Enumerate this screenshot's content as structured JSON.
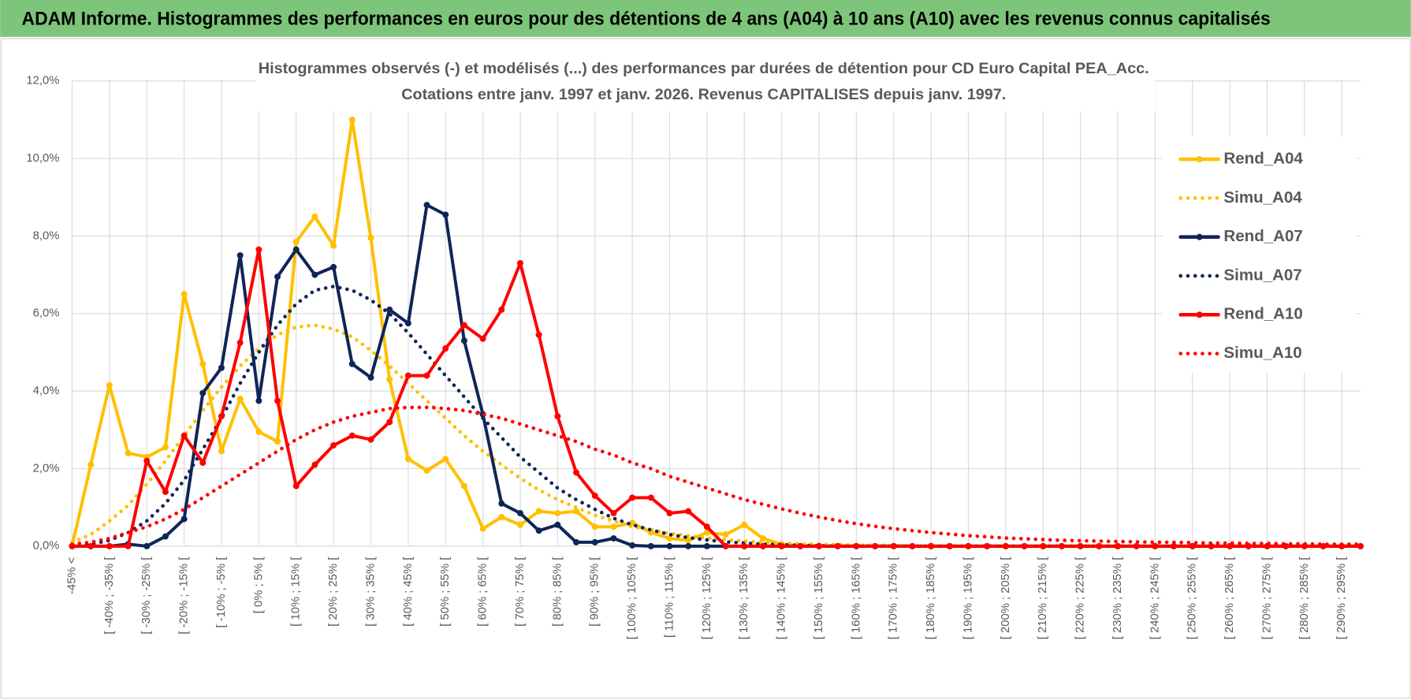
{
  "header": {
    "title": "ADAM Informe. Histogrammes des performances en euros pour des détentions de 4 ans (A04) à 10 ans (A10) avec les revenus connus capitalisés"
  },
  "chart_data": {
    "type": "line",
    "title": "Histogrammes observés (-) et modélisés (...) des performances par durées de détention pour CD Euro Capital PEA_Acc.",
    "subtitle": "Cotations entre janv. 1997 et janv. 2026. Revenus CAPITALISES depuis janv. 1997.",
    "categories": [
      "-45% <",
      null,
      "[ -40% ; -35% [",
      null,
      "[ -30% ; -25% [",
      null,
      "[ -20% ; -15% [",
      null,
      "[ -10% ; -5% [",
      null,
      "[ 0% ; 5% [",
      null,
      "[ 10% ; 15% [",
      null,
      "[ 20% ; 25% [",
      null,
      "[ 30% ; 35% [",
      null,
      "[ 40% ; 45% [",
      null,
      "[ 50% ; 55% [",
      null,
      "[ 60% ; 65% [",
      null,
      "[ 70% ; 75% [",
      null,
      "[ 80% ; 85% [",
      null,
      "[ 90% ; 95% [",
      null,
      "[ 100% ; 105% [",
      null,
      "[ 110% ; 115% [",
      null,
      "[ 120% ; 125% [",
      null,
      "[ 130% ; 135% [",
      null,
      "[ 140% ; 145% [",
      null,
      "[ 150% ; 155% [",
      null,
      "[ 160% ; 165% [",
      null,
      "[ 170% ; 175% [",
      null,
      "[ 180% ; 185% [",
      null,
      "[ 190% ; 195% [",
      null,
      "[ 200% ; 205% [",
      null,
      "[ 210% ; 215% [",
      null,
      "[ 220% ; 225% [",
      null,
      "[ 230% ; 235% [",
      null,
      "[ 240% ; 245% [",
      null,
      "[ 250% ; 255% [",
      null,
      "[ 260% ; 265% [",
      null,
      "[ 270% ; 275% [",
      null,
      "[ 280% ; 285% [",
      null,
      "[ 290% ; 295% [",
      null
    ],
    "series": [
      {
        "name": "Rend_A04",
        "color": "#ffc000",
        "style": "solid",
        "markers": true,
        "values": [
          0,
          2.1,
          4.15,
          2.4,
          2.3,
          2.55,
          6.5,
          4.7,
          2.45,
          3.8,
          2.95,
          2.7,
          7.85,
          8.5,
          7.75,
          11.0,
          7.95,
          4.3,
          2.25,
          1.95,
          2.25,
          1.55,
          0.45,
          0.75,
          0.55,
          0.9,
          0.85,
          0.9,
          0.5,
          0.5,
          0.6,
          0.35,
          0.2,
          0.15,
          0.35,
          0.3,
          0.55,
          0.2,
          0.05,
          0,
          0,
          0,
          0,
          0,
          0,
          0,
          0,
          0,
          0,
          0,
          0,
          0,
          0,
          0,
          0,
          0,
          0,
          0,
          0,
          0,
          0,
          0,
          0,
          0,
          0,
          0,
          0,
          0,
          0,
          0
        ]
      },
      {
        "name": "Simu_A04",
        "color": "#ffc000",
        "style": "dotted",
        "markers": false,
        "values": [
          0.1,
          0.3,
          0.65,
          1.05,
          1.6,
          2.2,
          2.85,
          3.5,
          4.1,
          4.65,
          5.1,
          5.45,
          5.65,
          5.7,
          5.6,
          5.4,
          5.05,
          4.65,
          4.2,
          3.75,
          3.3,
          2.85,
          2.45,
          2.1,
          1.75,
          1.45,
          1.2,
          1.0,
          0.8,
          0.65,
          0.5,
          0.42,
          0.33,
          0.27,
          0.21,
          0.17,
          0.13,
          0.1,
          0.08,
          0.06,
          0.05,
          0.04,
          0.03,
          0.02,
          0.02,
          0.01,
          0,
          0,
          0,
          0,
          0,
          0,
          0,
          0,
          0,
          0,
          0,
          0,
          0,
          0,
          0,
          0,
          0,
          0,
          0,
          0,
          0,
          0,
          0,
          0
        ]
      },
      {
        "name": "Rend_A07",
        "color": "#0f2557",
        "style": "solid",
        "markers": true,
        "values": [
          0,
          0,
          0,
          0.05,
          0,
          0.25,
          0.7,
          3.95,
          4.6,
          7.5,
          3.75,
          6.95,
          7.65,
          7.0,
          7.2,
          4.7,
          4.35,
          6.1,
          5.75,
          8.8,
          8.55,
          5.3,
          3.4,
          1.1,
          0.85,
          0.4,
          0.55,
          0.1,
          0.1,
          0.2,
          0.02,
          0,
          0,
          0,
          0,
          0,
          0,
          0,
          0,
          0,
          0,
          0,
          0,
          0,
          0,
          0,
          0,
          0,
          0,
          0,
          0,
          0,
          0,
          0,
          0,
          0,
          0,
          0,
          0,
          0,
          0,
          0,
          0,
          0,
          0,
          0,
          0,
          0,
          0,
          0
        ]
      },
      {
        "name": "Simu_A07",
        "color": "#0f2557",
        "style": "dotted",
        "markers": false,
        "values": [
          0,
          0.05,
          0.15,
          0.35,
          0.65,
          1.1,
          1.7,
          2.5,
          3.3,
          4.2,
          5.0,
          5.7,
          6.25,
          6.6,
          6.7,
          6.6,
          6.35,
          6.0,
          5.5,
          4.95,
          4.4,
          3.85,
          3.3,
          2.8,
          2.3,
          1.9,
          1.5,
          1.2,
          0.95,
          0.72,
          0.55,
          0.42,
          0.3,
          0.22,
          0.16,
          0.11,
          0.08,
          0.05,
          0.04,
          0.02,
          0.01,
          0,
          0,
          0,
          0,
          0,
          0,
          0,
          0,
          0,
          0,
          0,
          0,
          0,
          0,
          0,
          0,
          0,
          0,
          0,
          0,
          0,
          0,
          0,
          0,
          0,
          0,
          0,
          0,
          0
        ]
      },
      {
        "name": "Rend_A10",
        "color": "#ff0000",
        "style": "solid",
        "markers": true,
        "values": [
          0,
          0,
          0,
          0,
          2.2,
          1.4,
          2.85,
          2.15,
          3.35,
          5.25,
          7.65,
          3.75,
          1.55,
          2.1,
          2.6,
          2.85,
          2.75,
          3.2,
          4.4,
          4.4,
          5.1,
          5.7,
          5.35,
          6.1,
          7.3,
          5.45,
          3.35,
          1.9,
          1.3,
          0.85,
          1.25,
          1.25,
          0.85,
          0.9,
          0.5,
          0,
          0,
          0,
          0,
          0,
          0,
          0,
          0,
          0,
          0,
          0,
          0,
          0,
          0,
          0,
          0,
          0,
          0,
          0,
          0,
          0,
          0,
          0,
          0,
          0,
          0,
          0,
          0,
          0,
          0,
          0,
          0,
          0,
          0,
          0
        ]
      },
      {
        "name": "Simu_A10",
        "color": "#ff0000",
        "style": "dotted",
        "markers": false,
        "values": [
          0.05,
          0.1,
          0.2,
          0.35,
          0.5,
          0.7,
          0.95,
          1.25,
          1.55,
          1.85,
          2.15,
          2.45,
          2.75,
          3.0,
          3.2,
          3.35,
          3.45,
          3.55,
          3.58,
          3.58,
          3.55,
          3.5,
          3.4,
          3.3,
          3.15,
          3.0,
          2.85,
          2.7,
          2.5,
          2.35,
          2.15,
          2.0,
          1.8,
          1.65,
          1.5,
          1.35,
          1.2,
          1.08,
          0.96,
          0.85,
          0.75,
          0.66,
          0.58,
          0.51,
          0.45,
          0.4,
          0.35,
          0.31,
          0.27,
          0.24,
          0.21,
          0.19,
          0.17,
          0.15,
          0.14,
          0.13,
          0.12,
          0.11,
          0.1,
          0.1,
          0.09,
          0.08,
          0.08,
          0.07,
          0.07,
          0.06,
          0.06,
          0.05,
          0.05,
          0.05
        ]
      }
    ],
    "ylim": [
      0,
      12
    ],
    "yticks": [
      {
        "value": 0,
        "label": "0,0%"
      },
      {
        "value": 2,
        "label": "2,0%"
      },
      {
        "value": 4,
        "label": "4,0%"
      },
      {
        "value": 6,
        "label": "6,0%"
      },
      {
        "value": 8,
        "label": "8,0%"
      },
      {
        "value": 10,
        "label": "10,0%"
      },
      {
        "value": 12,
        "label": "12,0%"
      }
    ],
    "grid": true,
    "legend": "right"
  }
}
